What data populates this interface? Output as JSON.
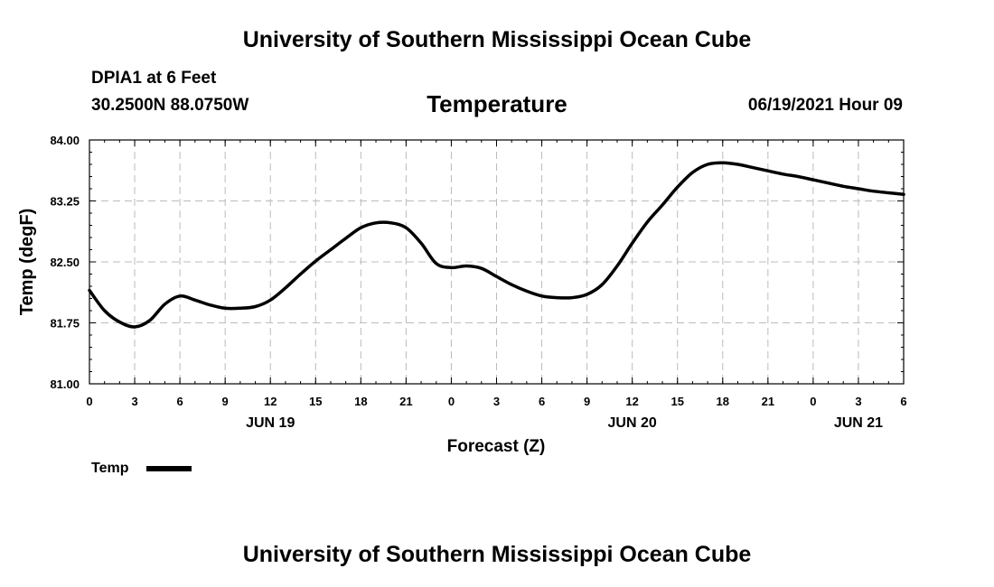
{
  "header": {
    "title_top": "University of Southern Mississippi Ocean Cube",
    "title_bottom": "University of Southern Mississippi Ocean Cube",
    "station": "DPIA1 at 6 Feet",
    "coords": "30.2500N  88.0750W",
    "datetime": "06/19/2021 Hour 09"
  },
  "legend": {
    "label": "Temp",
    "color": "#000000"
  },
  "chart_data": {
    "type": "line",
    "title": "Temperature",
    "xlabel": "Forecast (Z)",
    "ylabel": "Temp (degF)",
    "ylim": [
      81.0,
      84.0
    ],
    "yticks": [
      "81.00",
      "81.75",
      "82.50",
      "83.25",
      "84.00"
    ],
    "xlim_hours": [
      0,
      54
    ],
    "xtick_labels": [
      "0",
      "3",
      "6",
      "9",
      "12",
      "15",
      "18",
      "21",
      "0",
      "3",
      "6",
      "9",
      "12",
      "15",
      "18",
      "21",
      "0",
      "3",
      "6"
    ],
    "date_labels": [
      {
        "label": "JUN 19",
        "hour": 12
      },
      {
        "label": "JUN 20",
        "hour": 36
      },
      {
        "label": "JUN 21",
        "hour": 51
      }
    ],
    "grid": true,
    "series": [
      {
        "name": "Temp",
        "color": "#000000",
        "x": [
          0,
          1,
          2,
          3,
          4,
          5,
          6,
          7,
          8,
          9,
          10,
          11,
          12,
          13,
          14,
          15,
          16,
          17,
          18,
          19,
          20,
          21,
          22,
          23,
          24,
          25,
          26,
          27,
          28,
          29,
          30,
          31,
          32,
          33,
          34,
          35,
          36,
          37,
          38,
          39,
          40,
          41,
          42,
          43,
          44,
          45,
          46,
          47,
          48,
          49,
          50,
          51,
          52,
          53,
          54
        ],
        "values": [
          82.15,
          81.9,
          81.76,
          81.7,
          81.78,
          81.98,
          82.08,
          82.03,
          81.97,
          81.93,
          81.93,
          81.95,
          82.03,
          82.18,
          82.35,
          82.51,
          82.65,
          82.79,
          82.92,
          82.98,
          82.98,
          82.92,
          82.73,
          82.48,
          82.43,
          82.45,
          82.42,
          82.32,
          82.22,
          82.14,
          82.08,
          82.06,
          82.06,
          82.1,
          82.22,
          82.45,
          82.73,
          82.99,
          83.2,
          83.42,
          83.6,
          83.7,
          83.72,
          83.7,
          83.66,
          83.62,
          83.58,
          83.55,
          83.51,
          83.47,
          83.43,
          83.4,
          83.37,
          83.35,
          83.33
        ]
      }
    ]
  }
}
